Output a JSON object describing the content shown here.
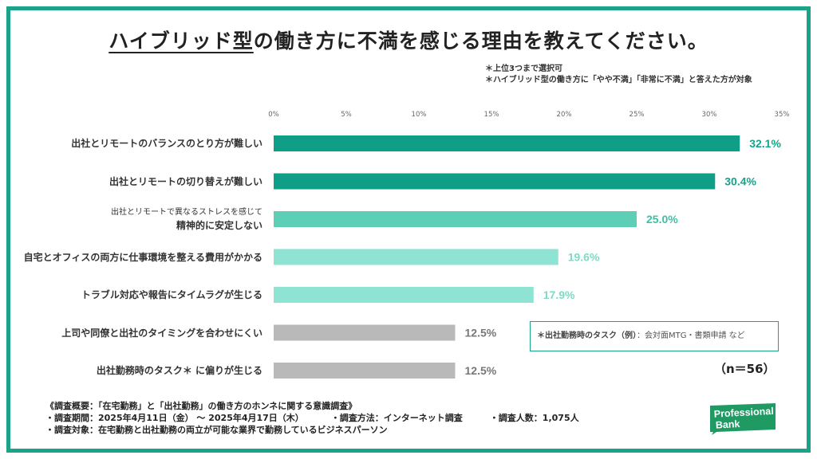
{
  "title": {
    "underlined": "ハイブリッド型",
    "rest": "の働き方に不満を感じる理由を教えてください。"
  },
  "notes": [
    "＊上位3つまで選択可",
    "＊ハイブリッド型の働き方に「やや不満」「非常に不満」と答えた方が対象"
  ],
  "chart_data": {
    "type": "bar",
    "orientation": "horizontal",
    "categories": [
      "出社とリモートのバランスのとり方が難しい",
      "出社とリモートの切り替えが難しい",
      "出社とリモートで異なるストレスを感じて精神的に安定しない",
      "自宅とオフィスの両方に仕事環境を整える費用がかかる",
      "トラブル対応や報告にタイムラグが生じる",
      "上司や同僚と出社のタイミングを合わせにくい",
      "出社勤務時のタスク＊ に偏りが生じる"
    ],
    "values": [
      32.1,
      30.4,
      25.0,
      19.6,
      17.9,
      12.5,
      12.5
    ],
    "value_labels": [
      "32.1%",
      "30.4%",
      "25.0%",
      "19.6%",
      "17.9%",
      "12.5%",
      "12.5%"
    ],
    "bar_colors": [
      "#0f9e86",
      "#0f9e86",
      "#5dcfb6",
      "#8fe3d3",
      "#8fe3d3",
      "#b9b9b9",
      "#b9b9b9"
    ],
    "label_colors": [
      "#13a48b",
      "#13a48b",
      "#3cc0a5",
      "#7fd9c6",
      "#7fd9c6",
      "#777777",
      "#777777"
    ],
    "x_ticks": [
      "0%",
      "5%",
      "10%",
      "15%",
      "20%",
      "25%",
      "30%",
      "35%"
    ],
    "xlim": [
      0,
      35
    ],
    "grid": false
  },
  "category_lines": [
    {
      "main": "出社とリモートのバランスのとり方が難しい"
    },
    {
      "main": "出社とリモートの切り替えが難しい"
    },
    {
      "small": "出社とリモートで異なるストレスを感じて",
      "main": "精神的に安定しない"
    },
    {
      "main": "自宅とオフィスの両方に仕事環境を整える費用がかかる"
    },
    {
      "main": "トラブル対応や報告にタイムラグが生じる"
    },
    {
      "main": "上司や同僚と出社のタイミングを合わせにくい"
    },
    {
      "main": "出社勤務時のタスク＊ に偏りが生じる"
    }
  ],
  "note_box": {
    "lead": "＊出社勤務時のタスク（例）",
    "body": "：会対面MTG・書類申請 など"
  },
  "n": "（n＝56）",
  "footer": {
    "line1": "《調査概要：「在宅勤務」と「出社勤務」の働き方のホンネに関する意識調査》",
    "period": "・調査期間：2025年4月11日（金） 〜 2025年4月17日（木）",
    "method": "・調査方法：インターネット調査",
    "count": "・調査人数：1,075人",
    "target": "・調査対象：在宅勤務と出社勤務の両立が可能な業界で勤務しているビジネスパーソン"
  },
  "logo": {
    "line1": "Professional",
    "line2": "Bank",
    "color": "#1f9a62"
  },
  "colors": {
    "frame": "#1aa38a"
  }
}
